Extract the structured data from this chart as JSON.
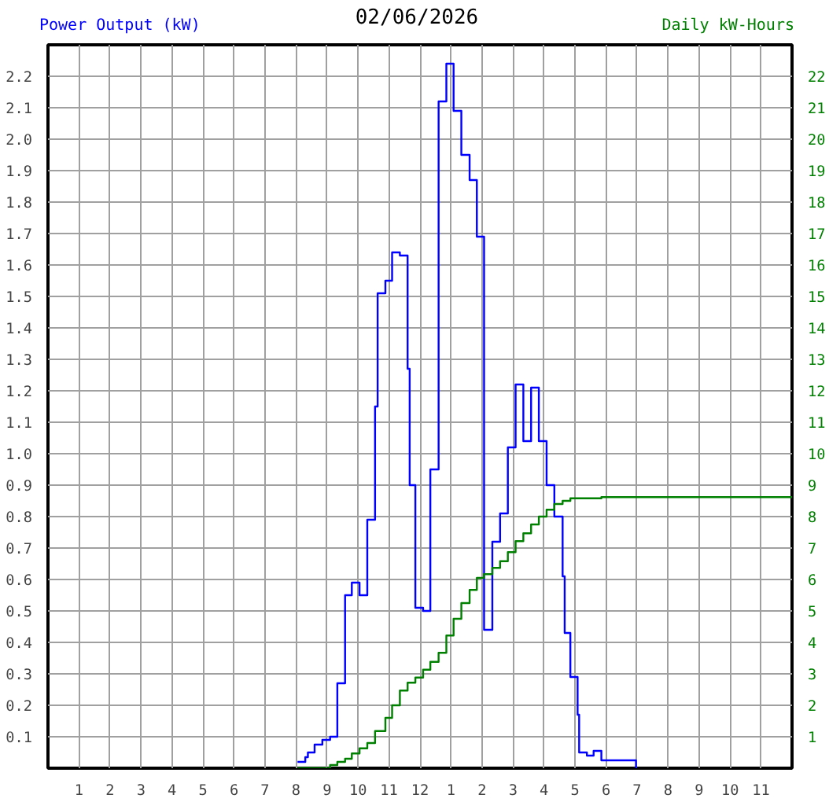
{
  "chart_data": {
    "type": "step",
    "title": "02/06/2026",
    "ylabel": "Power Output (kW)",
    "y2label": "Daily kW-Hours",
    "xlim": [
      "2026-02-06T00:00",
      "2026-02-07T00:00"
    ],
    "xticks": [
      {
        "value": "2026-02-06T01:00",
        "label": "1"
      },
      {
        "value": "2026-02-06T02:00",
        "label": "2"
      },
      {
        "value": "2026-02-06T03:00",
        "label": "3"
      },
      {
        "value": "2026-02-06T04:00",
        "label": "4"
      },
      {
        "value": "2026-02-06T05:00",
        "label": "5"
      },
      {
        "value": "2026-02-06T06:00",
        "label": "6"
      },
      {
        "value": "2026-02-06T07:00",
        "label": "7"
      },
      {
        "value": "2026-02-06T08:00",
        "label": "8"
      },
      {
        "value": "2026-02-06T09:00",
        "label": "9"
      },
      {
        "value": "2026-02-06T10:00",
        "label": "10"
      },
      {
        "value": "2026-02-06T11:00",
        "label": "11"
      },
      {
        "value": "2026-02-06T12:00",
        "label": "12"
      },
      {
        "value": "2026-02-06T13:00",
        "label": "1"
      },
      {
        "value": "2026-02-06T14:00",
        "label": "2"
      },
      {
        "value": "2026-02-06T15:00",
        "label": "3"
      },
      {
        "value": "2026-02-06T16:00",
        "label": "4"
      },
      {
        "value": "2026-02-06T17:00",
        "label": "5"
      },
      {
        "value": "2026-02-06T18:00",
        "label": "6"
      },
      {
        "value": "2026-02-06T19:00",
        "label": "7"
      },
      {
        "value": "2026-02-06T20:00",
        "label": "8"
      },
      {
        "value": "2026-02-06T21:00",
        "label": "9"
      },
      {
        "value": "2026-02-06T22:00",
        "label": "10"
      },
      {
        "value": "2026-02-06T23:00",
        "label": "11"
      }
    ],
    "ylim": [
      0,
      2.3
    ],
    "yticks": [
      0.1,
      0.2,
      0.3,
      0.4,
      0.5,
      0.6,
      0.7,
      0.8,
      0.9,
      {
        "value": 1.0,
        "label": "1.0"
      },
      1.1,
      1.2,
      1.3,
      1.4,
      1.5,
      1.6,
      1.7,
      1.8,
      1.9,
      {
        "value": 2.0,
        "label": "2.0"
      },
      2.1,
      2.2
    ],
    "y2lim": [
      0,
      23
    ],
    "y2ticks": [
      1,
      2,
      3,
      4,
      5,
      6,
      7,
      8,
      9,
      10,
      11,
      12,
      13,
      14,
      15,
      16,
      17,
      18,
      19,
      20,
      21,
      22
    ],
    "grid": true,
    "series": [
      {
        "color": "#0000ff",
        "x": [
          "2026-02-06T08:03",
          "2026-02-06T08:18",
          "2026-02-06T08:23",
          "2026-02-06T08:36",
          "2026-02-06T08:51",
          "2026-02-06T09:06",
          "2026-02-06T09:20",
          "2026-02-06T09:35",
          "2026-02-06T09:48",
          "2026-02-06T10:03",
          "2026-02-06T10:18",
          "2026-02-06T10:33",
          "2026-02-06T10:38",
          "2026-02-06T10:53",
          "2026-02-06T11:06",
          "2026-02-06T11:21",
          "2026-02-06T11:36",
          "2026-02-06T11:40",
          "2026-02-06T11:51",
          "2026-02-06T12:06",
          "2026-02-06T12:20",
          "2026-02-06T12:36",
          "2026-02-06T12:51",
          "2026-02-06T13:05",
          "2026-02-06T13:20",
          "2026-02-06T13:36",
          "2026-02-06T13:50",
          "2026-02-06T14:04",
          "2026-02-06T14:20",
          "2026-02-06T14:35",
          "2026-02-06T14:50",
          "2026-02-06T15:05",
          "2026-02-06T15:20",
          "2026-02-06T15:35",
          "2026-02-06T15:50",
          "2026-02-06T16:05",
          "2026-02-06T16:20",
          "2026-02-06T16:36",
          "2026-02-06T16:40",
          "2026-02-06T16:51",
          "2026-02-06T17:05",
          "2026-02-06T17:08",
          "2026-02-06T17:23",
          "2026-02-06T17:36",
          "2026-02-06T17:51",
          "2026-02-06T18:58"
        ],
        "values": [
          0.02,
          0.035,
          0.05,
          0.075,
          0.09,
          0.1,
          0.27,
          0.55,
          0.59,
          0.55,
          0.79,
          1.15,
          1.51,
          1.55,
          1.64,
          1.63,
          1.27,
          0.9,
          0.51,
          0.5,
          0.95,
          2.12,
          2.24,
          2.09,
          1.95,
          1.87,
          1.69,
          0.44,
          0.72,
          0.81,
          1.02,
          1.22,
          1.04,
          1.21,
          1.04,
          0.9,
          0.8,
          0.61,
          0.43,
          0.29,
          0.17,
          0.05,
          0.04,
          0.055,
          0.025,
          0
        ]
      },
      {
        "color": "#008000",
        "axis": "y2",
        "x": [
          "2026-02-06T08:03",
          "2026-02-06T09:06",
          "2026-02-06T09:20",
          "2026-02-06T09:35",
          "2026-02-06T09:48",
          "2026-02-06T10:03",
          "2026-02-06T10:18",
          "2026-02-06T10:33",
          "2026-02-06T10:53",
          "2026-02-06T11:06",
          "2026-02-06T11:21",
          "2026-02-06T11:36",
          "2026-02-06T11:51",
          "2026-02-06T12:06",
          "2026-02-06T12:20",
          "2026-02-06T12:36",
          "2026-02-06T12:51",
          "2026-02-06T13:05",
          "2026-02-06T13:20",
          "2026-02-06T13:36",
          "2026-02-06T13:50",
          "2026-02-06T14:04",
          "2026-02-06T14:20",
          "2026-02-06T14:35",
          "2026-02-06T14:50",
          "2026-02-06T15:05",
          "2026-02-06T15:20",
          "2026-02-06T15:35",
          "2026-02-06T15:50",
          "2026-02-06T16:05",
          "2026-02-06T16:20",
          "2026-02-06T16:36",
          "2026-02-06T16:51",
          "2026-02-06T17:51",
          "2026-02-07T00:00"
        ],
        "values": [
          0,
          0.1,
          0.2,
          0.3,
          0.47,
          0.63,
          0.8,
          1.18,
          1.6,
          2.0,
          2.47,
          2.72,
          2.88,
          3.13,
          3.38,
          3.67,
          4.22,
          4.75,
          5.25,
          5.67,
          6.05,
          6.17,
          6.37,
          6.58,
          6.87,
          7.22,
          7.47,
          7.75,
          8.0,
          8.22,
          8.4,
          8.5,
          8.58,
          8.62,
          8.62
        ]
      }
    ]
  }
}
